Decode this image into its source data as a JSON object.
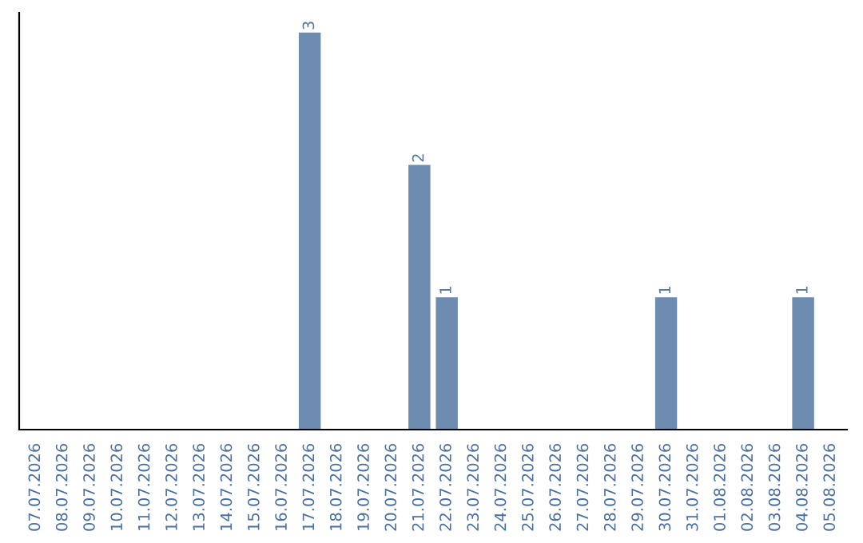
{
  "chart_data": {
    "type": "bar",
    "categories": [
      "07.07.2026",
      "08.07.2026",
      "09.07.2026",
      "10.07.2026",
      "11.07.2026",
      "12.07.2026",
      "13.07.2026",
      "14.07.2026",
      "15.07.2026",
      "16.07.2026",
      "17.07.2026",
      "18.07.2026",
      "19.07.2026",
      "20.07.2026",
      "21.07.2026",
      "22.07.2026",
      "23.07.2026",
      "24.07.2026",
      "25.07.2026",
      "26.07.2026",
      "27.07.2026",
      "28.07.2026",
      "29.07.2026",
      "30.07.2026",
      "31.07.2026",
      "01.08.2026",
      "02.08.2026",
      "03.08.2026",
      "04.08.2026",
      "05.08.2026"
    ],
    "values": [
      0,
      0,
      0,
      0,
      0,
      0,
      0,
      0,
      0,
      0,
      3,
      0,
      0,
      0,
      2,
      1,
      0,
      0,
      0,
      0,
      0,
      0,
      0,
      1,
      0,
      0,
      0,
      0,
      1,
      0
    ],
    "value_labels": [
      null,
      null,
      null,
      null,
      null,
      null,
      null,
      null,
      null,
      null,
      "3",
      null,
      null,
      null,
      "2",
      "1",
      null,
      null,
      null,
      null,
      null,
      null,
      null,
      "1",
      null,
      null,
      null,
      null,
      "1",
      null
    ],
    "color": "#6d8caf",
    "ylim": [
      0,
      3.15
    ],
    "tick_labels": "x",
    "grid": false,
    "legend": false
  }
}
